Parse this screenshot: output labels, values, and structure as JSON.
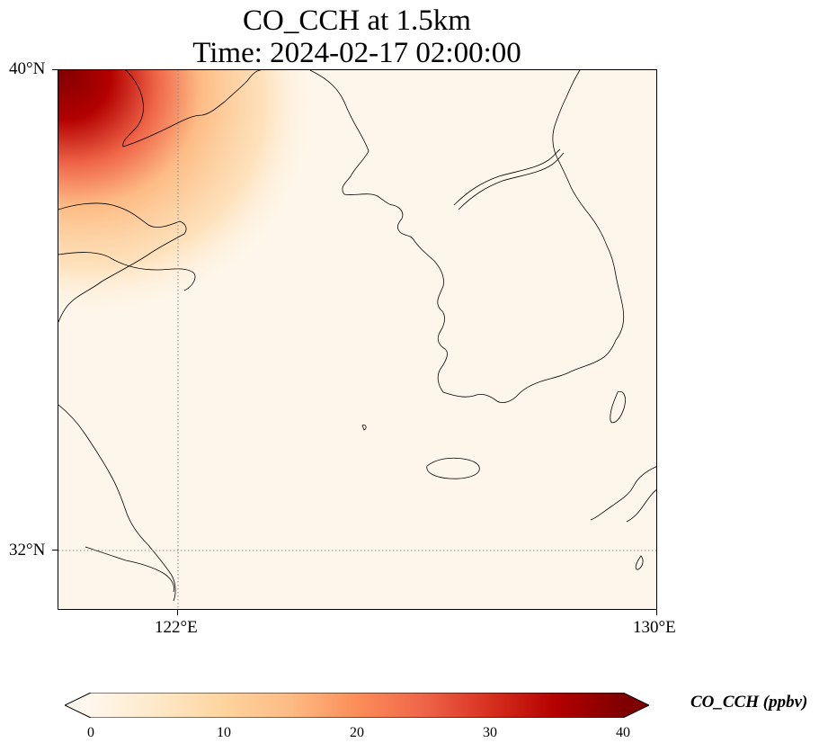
{
  "title": {
    "line1": "CO_CCH at 1.5km",
    "line2": "Time: 2024-02-17 02:00:00"
  },
  "map": {
    "variable": "CO_CCH",
    "lon_range": [
      120,
      130
    ],
    "lat_range": [
      31,
      40
    ],
    "lat_ticks": [
      {
        "value": 40,
        "label": "40°N"
      },
      {
        "value": 32,
        "label": "32°N"
      }
    ],
    "lon_ticks": [
      {
        "value": 122,
        "label": "122°E"
      },
      {
        "value": 130,
        "label": "130°E"
      }
    ],
    "gridlines": {
      "style": "dotted",
      "lon": [
        122
      ],
      "lat": [
        32
      ]
    },
    "colormap": "OrRd"
  },
  "colorbar": {
    "title": "CO_CCH (ppbv)",
    "min": 0,
    "max": 40,
    "extend": "both",
    "ticks": [
      "0",
      "10",
      "20",
      "30",
      "40"
    ],
    "colors": [
      "#fff7ec",
      "#fee8c8",
      "#fdd49e",
      "#fdbb84",
      "#fc8d59",
      "#ef6548",
      "#d7301f",
      "#b30000",
      "#7f0000"
    ]
  }
}
